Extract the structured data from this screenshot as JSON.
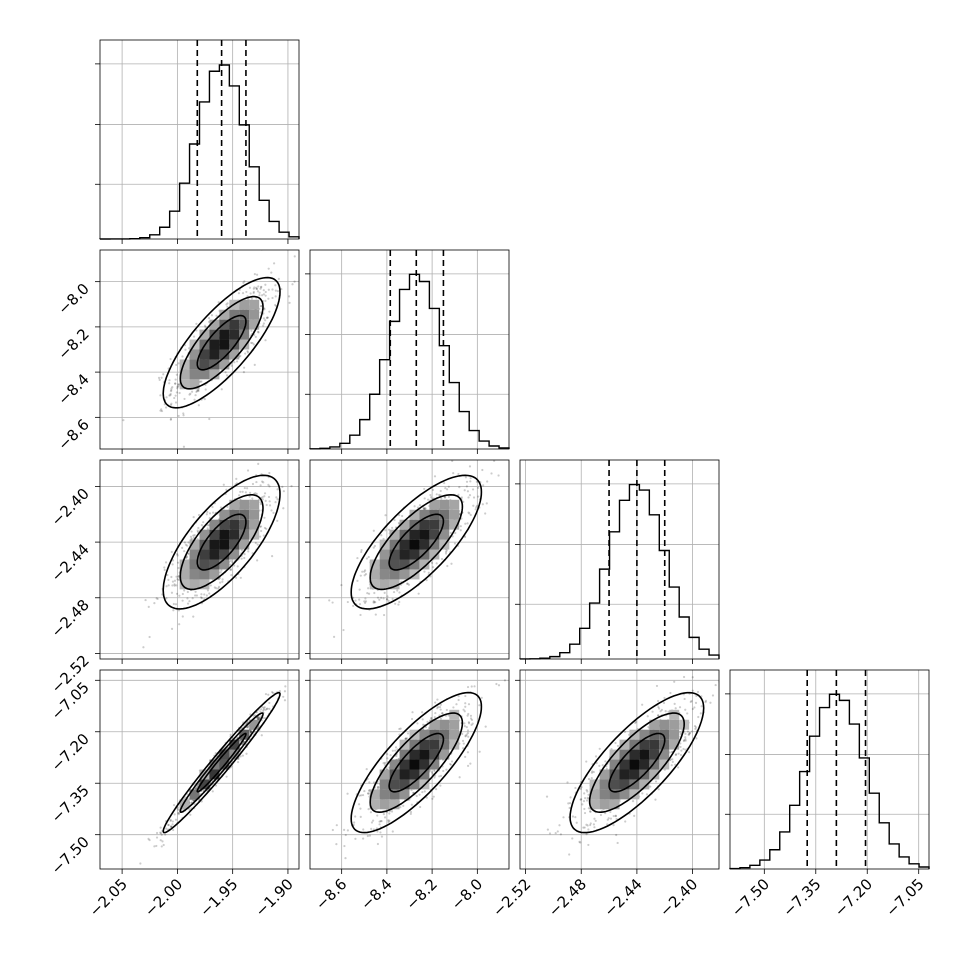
{
  "chart_data": {
    "type": "corner",
    "grid": true,
    "colors": {
      "ink": "#000000",
      "grid": "#b0b0b0",
      "background": "#ffffff"
    },
    "parameters": [
      {
        "index": 0,
        "center": -1.96,
        "sigma": 0.022,
        "range": [
          -2.07,
          -1.89
        ],
        "ticks": [
          -2.05,
          -2.0,
          -1.95,
          -1.9
        ],
        "tick_labels": [
          "−2.05",
          "−2.00",
          "−1.95",
          "−1.90"
        ],
        "quantiles": [
          -1.982,
          -1.96,
          -1.938
        ]
      },
      {
        "index": 1,
        "center": -8.27,
        "sigma": 0.12,
        "range": [
          -8.74,
          -7.86
        ],
        "ticks": [
          -8.6,
          -8.4,
          -8.2,
          -8.0
        ],
        "tick_labels": [
          "−8.6",
          "−8.4",
          "−8.2",
          "−8.0"
        ],
        "quantiles": [
          -8.385,
          -8.27,
          -8.15
        ]
      },
      {
        "index": 2,
        "center": -2.44,
        "sigma": 0.02,
        "range": [
          -2.524,
          -2.381
        ],
        "ticks": [
          -2.52,
          -2.48,
          -2.44,
          -2.4
        ],
        "tick_labels": [
          "−2.52",
          "−2.48",
          "−2.44",
          "−2.40"
        ],
        "quantiles": [
          -2.46,
          -2.44,
          -2.42
        ]
      },
      {
        "index": 3,
        "center": -7.29,
        "sigma": 0.085,
        "range": [
          -7.6,
          -7.02
        ],
        "ticks": [
          -7.5,
          -7.35,
          -7.2,
          -7.05
        ],
        "tick_labels": [
          "−7.50",
          "−7.35",
          "−7.20",
          "−7.05"
        ],
        "quantiles": [
          -7.375,
          -7.29,
          -7.205
        ]
      }
    ],
    "correlations": [
      {
        "x": 0,
        "y": 1,
        "rho": 0.78
      },
      {
        "x": 0,
        "y": 2,
        "rho": 0.72
      },
      {
        "x": 0,
        "y": 3,
        "rho": 0.98
      },
      {
        "x": 1,
        "y": 2,
        "rho": 0.75
      },
      {
        "x": 1,
        "y": 3,
        "rho": 0.8
      },
      {
        "x": 2,
        "y": 3,
        "rho": 0.78
      }
    ],
    "histograms": [
      {
        "param": 0,
        "bins": 20,
        "peak_count": 0.88,
        "y_gridlines": [
          0.275,
          0.575,
          0.88
        ]
      },
      {
        "param": 1,
        "bins": 20,
        "peak_count": 0.88,
        "y_gridlines": [
          0.275,
          0.575,
          0.88
        ]
      },
      {
        "param": 2,
        "bins": 20,
        "peak_count": 0.88,
        "y_gridlines": [
          0.275,
          0.575,
          0.88
        ]
      },
      {
        "param": 3,
        "bins": 20,
        "peak_count": 0.88,
        "y_gridlines": [
          0.275,
          0.575,
          0.88
        ]
      }
    ],
    "contour_levels_sigma": [
      1.0,
      1.7,
      2.4
    ]
  }
}
